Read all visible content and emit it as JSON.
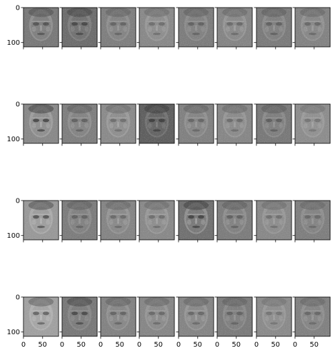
{
  "figure": {
    "rows": 4,
    "cols": 8,
    "xtick_labels": [
      "0",
      "50"
    ],
    "ytick_labels": [
      "0",
      "100"
    ],
    "colormap": "gray",
    "background": "#ffffff"
  },
  "panels": [
    {
      "row": 0,
      "col": 0,
      "tone": "#7a7a7a",
      "shade": "#3a3a3a",
      "highlight": "#c8c8c8"
    },
    {
      "row": 0,
      "col": 1,
      "tone": "#6e6e6e",
      "shade": "#2e2e2e",
      "highlight": "#b0b0b0"
    },
    {
      "row": 0,
      "col": 2,
      "tone": "#808080",
      "shade": "#505050",
      "highlight": "#b8b8b8"
    },
    {
      "row": 0,
      "col": 3,
      "tone": "#8a8a8a",
      "shade": "#5a5a5a",
      "highlight": "#c0c0c0"
    },
    {
      "row": 0,
      "col": 4,
      "tone": "#7e7e7e",
      "shade": "#4e4e4e",
      "highlight": "#b4b4b4"
    },
    {
      "row": 0,
      "col": 5,
      "tone": "#868686",
      "shade": "#565656",
      "highlight": "#c4c4c4"
    },
    {
      "row": 0,
      "col": 6,
      "tone": "#7c7c7c",
      "shade": "#4c4c4c",
      "highlight": "#b6b6b6"
    },
    {
      "row": 0,
      "col": 7,
      "tone": "#848484",
      "shade": "#545454",
      "highlight": "#bcbcbc"
    },
    {
      "row": 1,
      "col": 0,
      "tone": "#8a8a8a",
      "shade": "#1e1e1e",
      "highlight": "#d2d2d2"
    },
    {
      "row": 1,
      "col": 1,
      "tone": "#808080",
      "shade": "#4a4a4a",
      "highlight": "#bcbcbc"
    },
    {
      "row": 1,
      "col": 2,
      "tone": "#8c8c8c",
      "shade": "#5a5a5a",
      "highlight": "#c6c6c6"
    },
    {
      "row": 1,
      "col": 3,
      "tone": "#606060",
      "shade": "#2a2a2a",
      "highlight": "#a8a8a8"
    },
    {
      "row": 1,
      "col": 4,
      "tone": "#828282",
      "shade": "#525252",
      "highlight": "#bcbcbc"
    },
    {
      "row": 1,
      "col": 5,
      "tone": "#888888",
      "shade": "#585858",
      "highlight": "#c0c0c0"
    },
    {
      "row": 1,
      "col": 6,
      "tone": "#7a7a7a",
      "shade": "#4a4a4a",
      "highlight": "#b8b8b8"
    },
    {
      "row": 1,
      "col": 7,
      "tone": "#8e8e8e",
      "shade": "#646464",
      "highlight": "#c2c2c2"
    },
    {
      "row": 2,
      "col": 0,
      "tone": "#9a9a9a",
      "shade": "#2a2a2a",
      "highlight": "#d6d6d6"
    },
    {
      "row": 2,
      "col": 1,
      "tone": "#7e7e7e",
      "shade": "#4e4e4e",
      "highlight": "#b6b6b6"
    },
    {
      "row": 2,
      "col": 2,
      "tone": "#868686",
      "shade": "#565656",
      "highlight": "#c2c2c2"
    },
    {
      "row": 2,
      "col": 3,
      "tone": "#8a8a8a",
      "shade": "#5a5a5a",
      "highlight": "#c4c4c4"
    },
    {
      "row": 2,
      "col": 4,
      "tone": "#727272",
      "shade": "#262626",
      "highlight": "#dcdcdc"
    },
    {
      "row": 2,
      "col": 5,
      "tone": "#7e7e7e",
      "shade": "#4c4c4c",
      "highlight": "#bcbcbc"
    },
    {
      "row": 2,
      "col": 6,
      "tone": "#8a8a8a",
      "shade": "#5c5c5c",
      "highlight": "#bebebe"
    },
    {
      "row": 2,
      "col": 7,
      "tone": "#808080",
      "shade": "#585858",
      "highlight": "#b8b8b8"
    },
    {
      "row": 3,
      "col": 0,
      "tone": "#a2a2a2",
      "shade": "#3e3e3e",
      "highlight": "#dadada"
    },
    {
      "row": 3,
      "col": 1,
      "tone": "#7a7a7a",
      "shade": "#2c2c2c",
      "highlight": "#b0b0b0"
    },
    {
      "row": 3,
      "col": 2,
      "tone": "#848484",
      "shade": "#4e4e4e",
      "highlight": "#bcbcbc"
    },
    {
      "row": 3,
      "col": 3,
      "tone": "#888888",
      "shade": "#545454",
      "highlight": "#c0c0c0"
    },
    {
      "row": 3,
      "col": 4,
      "tone": "#868686",
      "shade": "#525252",
      "highlight": "#c4c4c4"
    },
    {
      "row": 3,
      "col": 5,
      "tone": "#7c7c7c",
      "shade": "#505050",
      "highlight": "#b4b4b4"
    },
    {
      "row": 3,
      "col": 6,
      "tone": "#8c8c8c",
      "shade": "#646464",
      "highlight": "#bcbcbc"
    },
    {
      "row": 3,
      "col": 7,
      "tone": "#828282",
      "shade": "#565656",
      "highlight": "#b8b8b8"
    }
  ]
}
